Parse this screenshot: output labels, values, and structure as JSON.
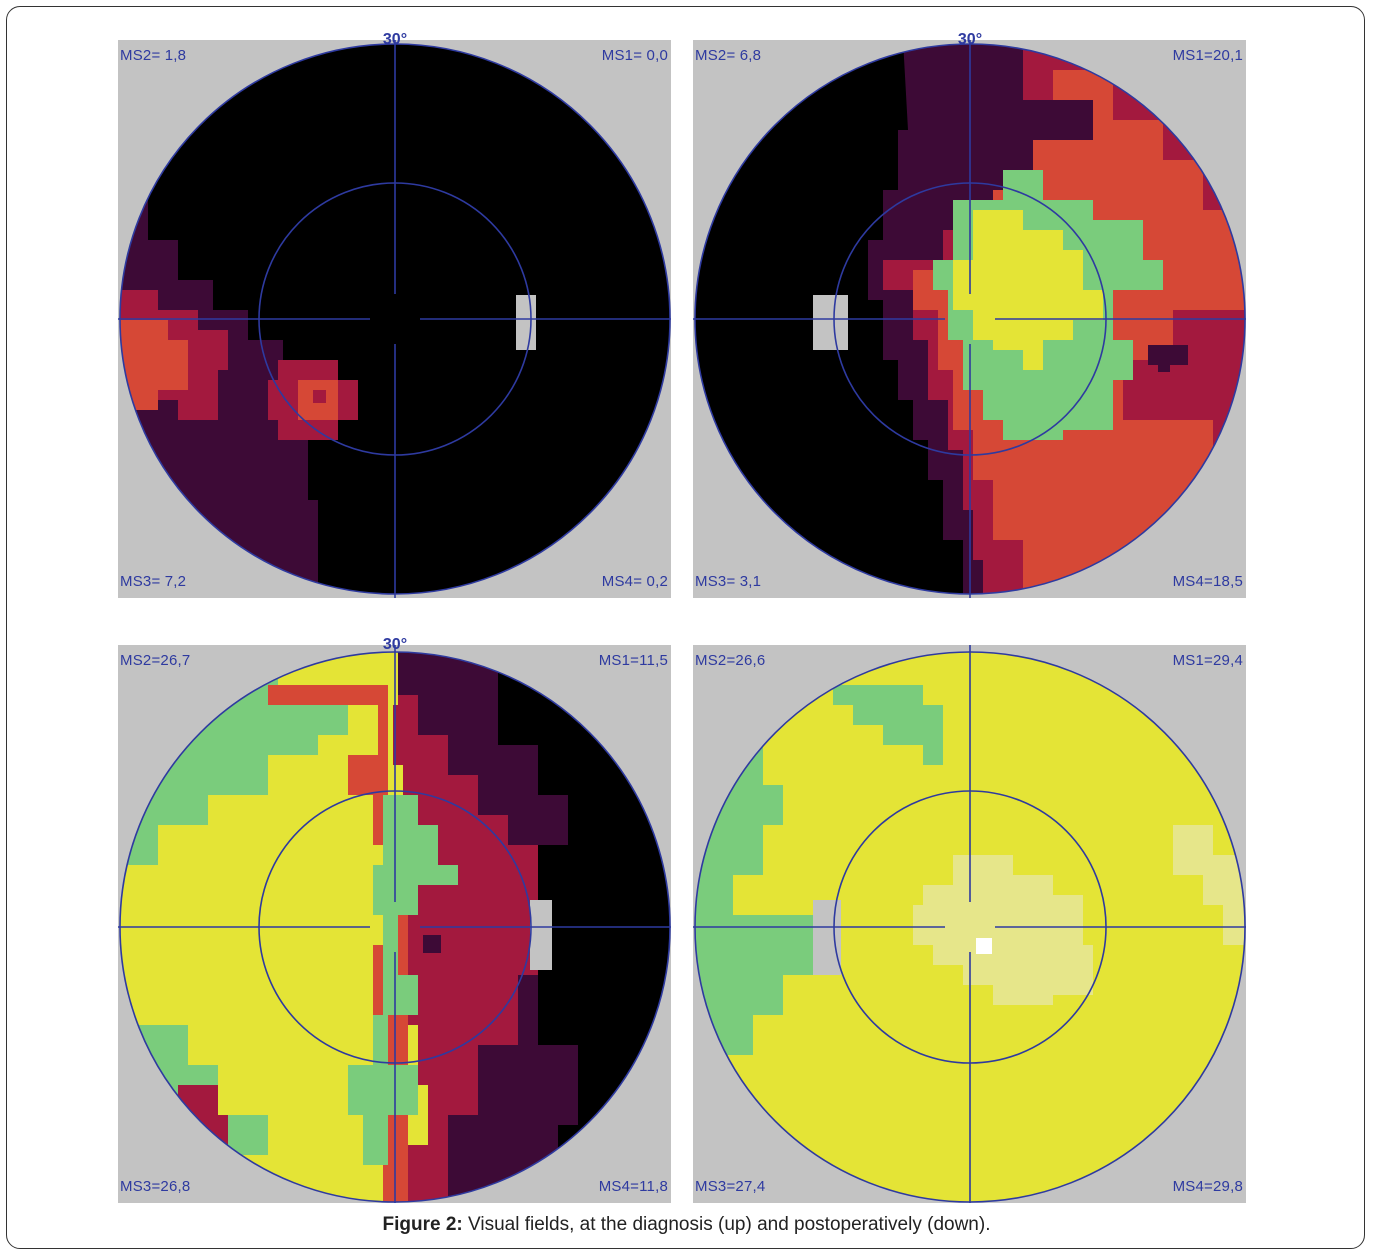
{
  "caption": {
    "label": "Figure 2:",
    "text": "Visual fields, at the diagnosis (up) and postoperatively (down)."
  },
  "colors": {
    "background": "#c3c3c3",
    "black": "#000000",
    "dark_purple": "#3d0a36",
    "crimson": "#a3193e",
    "red_orange": "#d64836",
    "green": "#7acc7c",
    "yellow": "#e4e436",
    "pale_yellow": "#e6e68a",
    "white": "#ffffff",
    "grid": "#2e3aa0"
  },
  "panels": [
    {
      "id": "pre-left",
      "ms_top_left": "MS2= 1,8",
      "ms_top_right": "MS1= 0,0",
      "ms_bottom_left": "MS3= 7,2",
      "ms_bottom_right": "MS4= 0,2",
      "degree_label": "30°"
    },
    {
      "id": "pre-right",
      "ms_top_left": "MS2= 6,8",
      "ms_top_right": "MS1=20,1",
      "ms_bottom_left": "MS3= 3,1",
      "ms_bottom_right": "MS4=18,5",
      "degree_label": "30°"
    },
    {
      "id": "post-left",
      "ms_top_left": "MS2=26,7",
      "ms_top_right": "MS1=11,5",
      "ms_bottom_left": "MS3=26,8",
      "ms_bottom_right": "MS4=11,8",
      "degree_label": "30°"
    },
    {
      "id": "post-right",
      "ms_top_left": "MS2=26,6",
      "ms_top_right": "MS1=29,4",
      "ms_bottom_left": "MS3=27,4",
      "ms_bottom_right": "MS4=29,8",
      "degree_label": ""
    }
  ]
}
